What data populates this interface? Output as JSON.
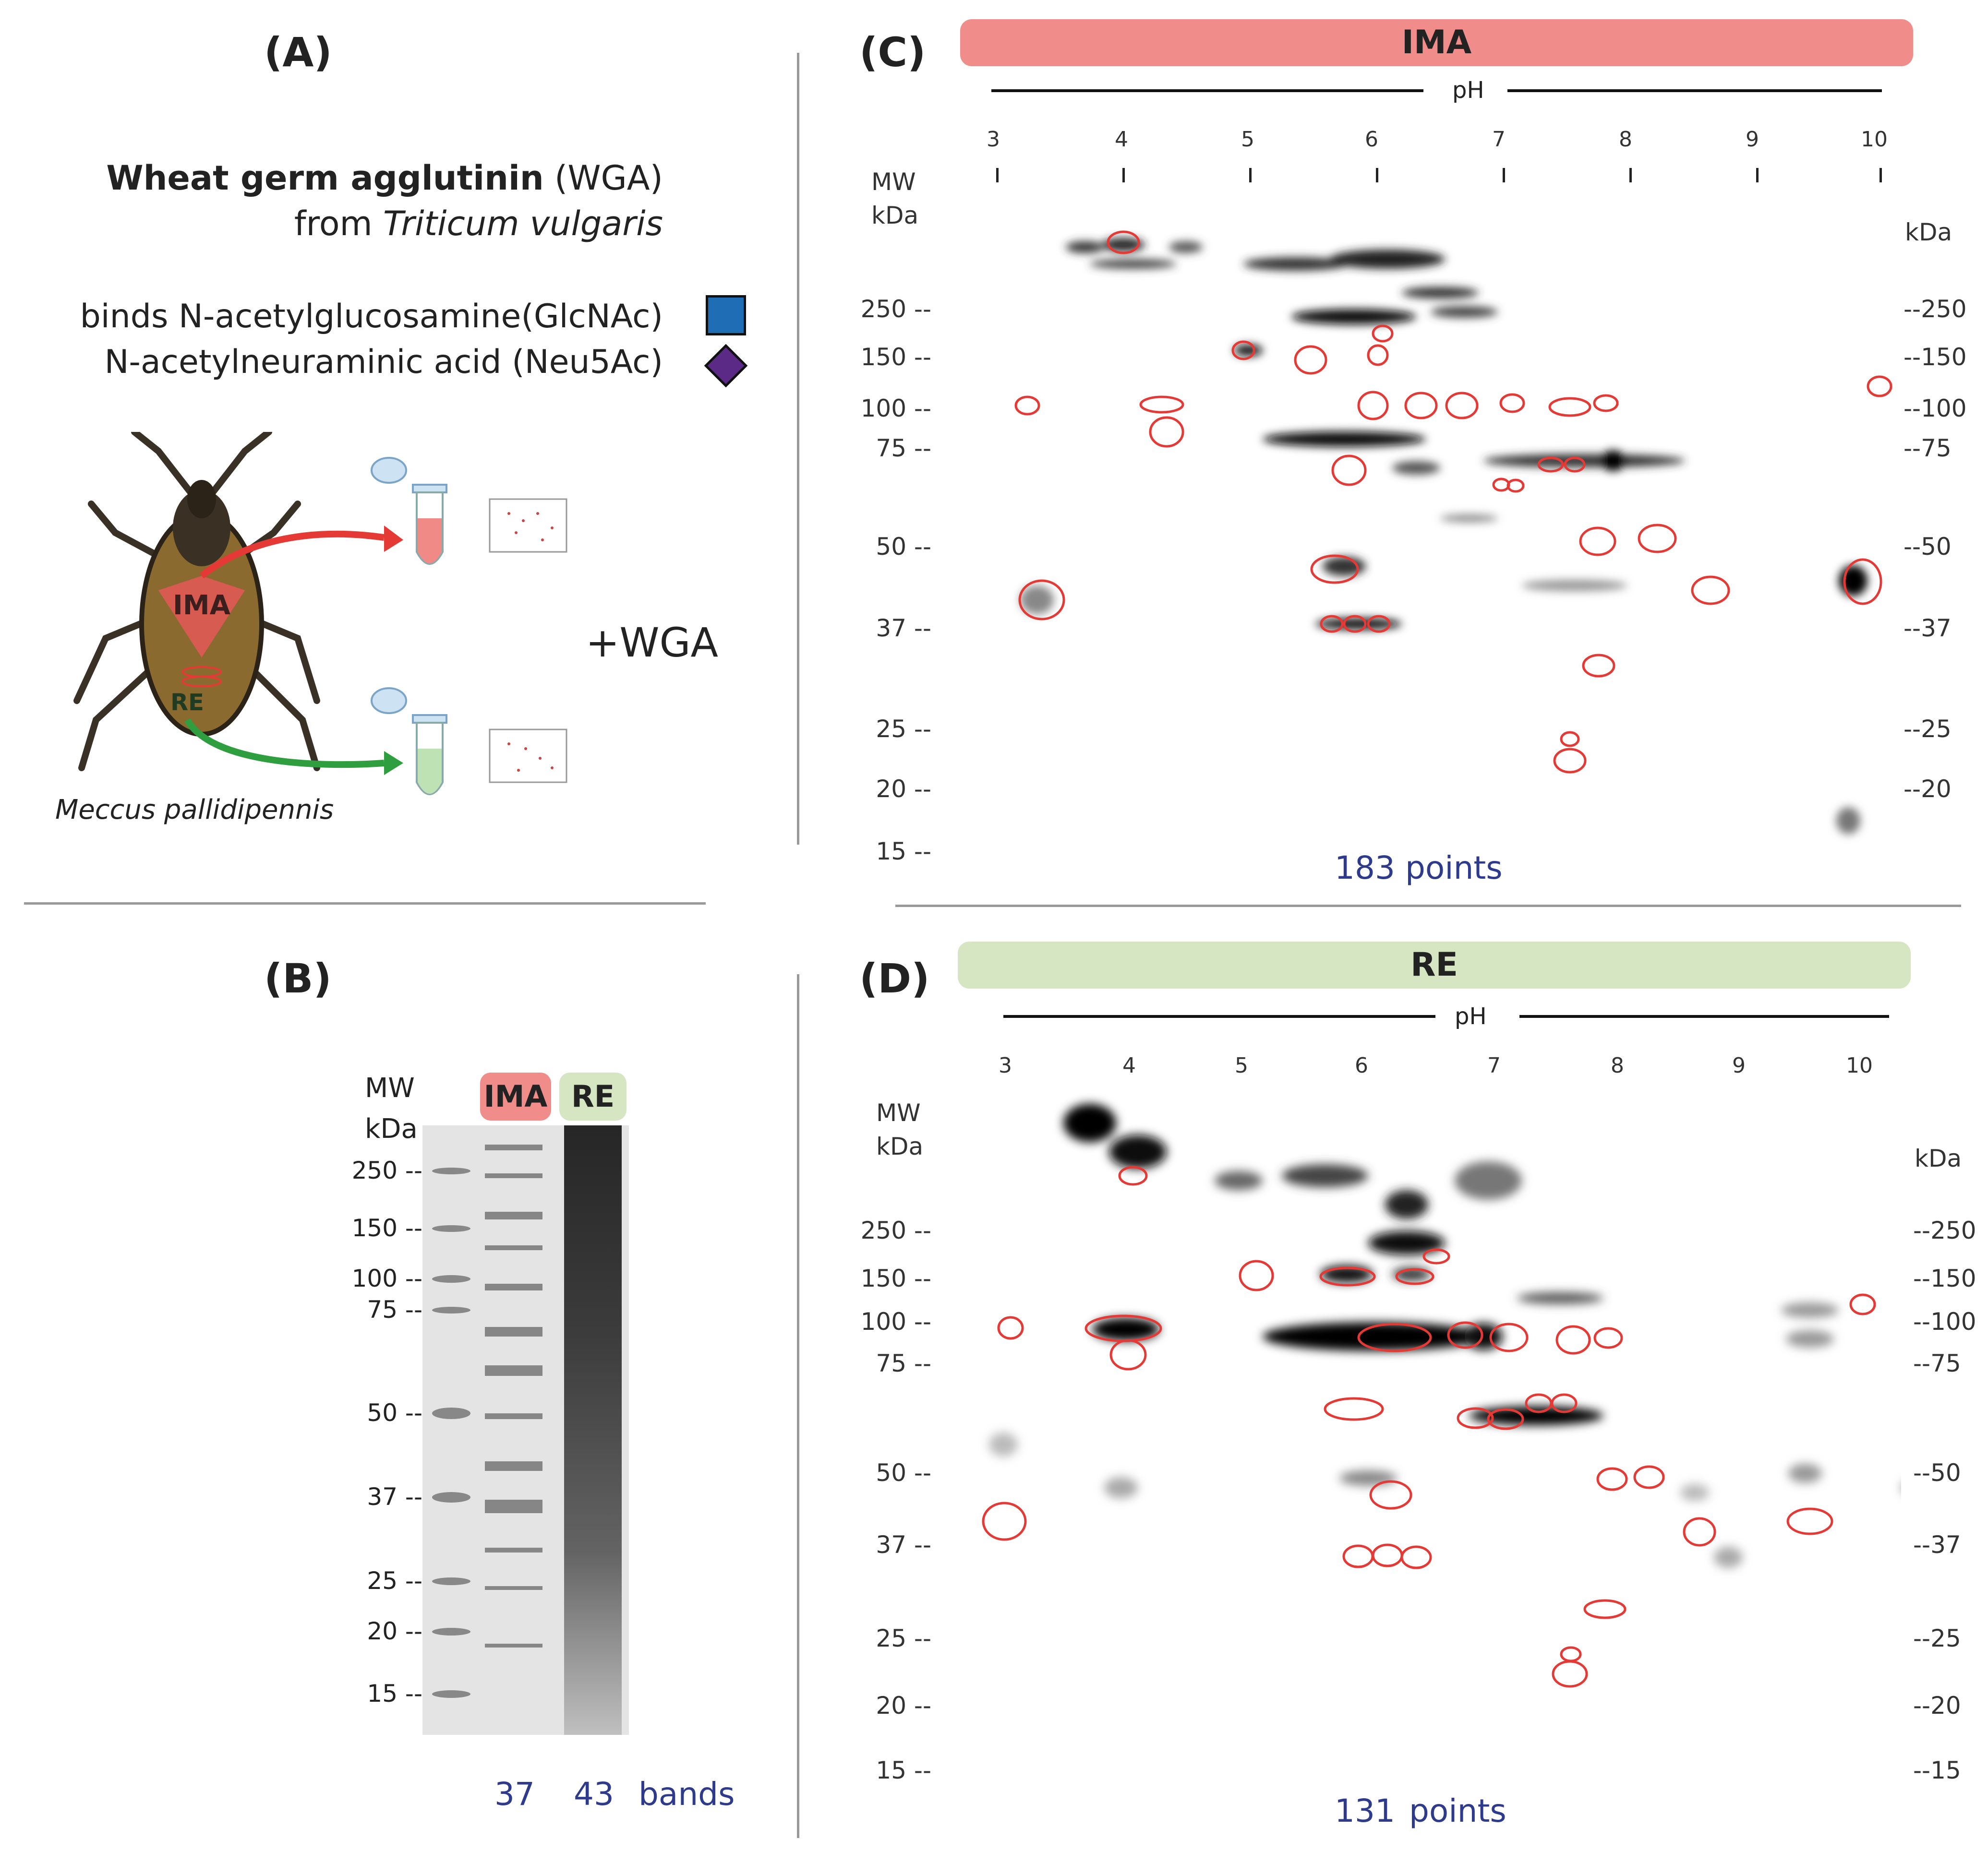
{
  "panels": {
    "A": {
      "label": "(A)",
      "title_bold": "Wheat germ agglutinin",
      "title_abbr": "(WGA)",
      "source_prefix": "from",
      "source_species": "Triticum vulgaris",
      "binds_1": "binds N-acetylglucosamine(GlcNAc)",
      "binds_2": "N-acetylneuraminic acid (Neu5Ac)",
      "organ_1": "IMA",
      "organ_2": "RE",
      "species": "Meccus pallidipennis",
      "treatment": "+WGA",
      "colors": {
        "glcnac": "#1f6db5",
        "neu5ac": "#5b2a86",
        "ima_arrow": "#e53935",
        "re_arrow": "#2e9e3f"
      }
    },
    "B": {
      "label": "(B)",
      "mw_label": "MW",
      "kda_label": "kDa",
      "lane_1": "IMA",
      "lane_2": "RE",
      "markers": [
        "250 --",
        "150 --",
        "100 --",
        "75 --",
        "50 --",
        "37 --",
        "25 --",
        "20 --",
        "15 --"
      ],
      "band_count_ima": "37",
      "band_count_re": "43",
      "bands_label": "bands"
    },
    "C": {
      "label": "(C)",
      "banner": "IMA",
      "ph_label": "pH",
      "ph_ticks": [
        "3",
        "4",
        "5",
        "6",
        "7",
        "8",
        "9",
        "10"
      ],
      "mw_label": "MW",
      "kda_left": "kDa",
      "kda_right": "kDa",
      "left_markers": [
        "250 --",
        "150 --",
        "100 --",
        "75 --",
        "50 --",
        "37 --",
        "25 --",
        "20 --",
        "15 --"
      ],
      "right_markers": [
        "--250",
        "--150",
        "--100",
        "--75",
        "--50",
        "--37",
        "--25",
        "--20"
      ],
      "points": "183 points"
    },
    "D": {
      "label": "(D)",
      "banner": "RE",
      "ph_label": "pH",
      "ph_ticks": [
        "3",
        "4",
        "5",
        "6",
        "7",
        "8",
        "9",
        "10"
      ],
      "mw_label": "MW",
      "kda_left": "kDa",
      "kda_right": "kDa",
      "left_markers": [
        "250 --",
        "150 --",
        "100 --",
        "75 --",
        "50 --",
        "37 --",
        "25 --",
        "20 --",
        "15 --"
      ],
      "right_markers": [
        "--250",
        "--150",
        "--100",
        "--75",
        "--50",
        "--37",
        "--25",
        "--20",
        "--15"
      ],
      "points_count": "131",
      "points_label": "points"
    }
  },
  "colors": {
    "ima": "#f08d8a",
    "re": "#d6e6c3",
    "circle": "#e53935",
    "count_text": "#2e3a8c"
  }
}
